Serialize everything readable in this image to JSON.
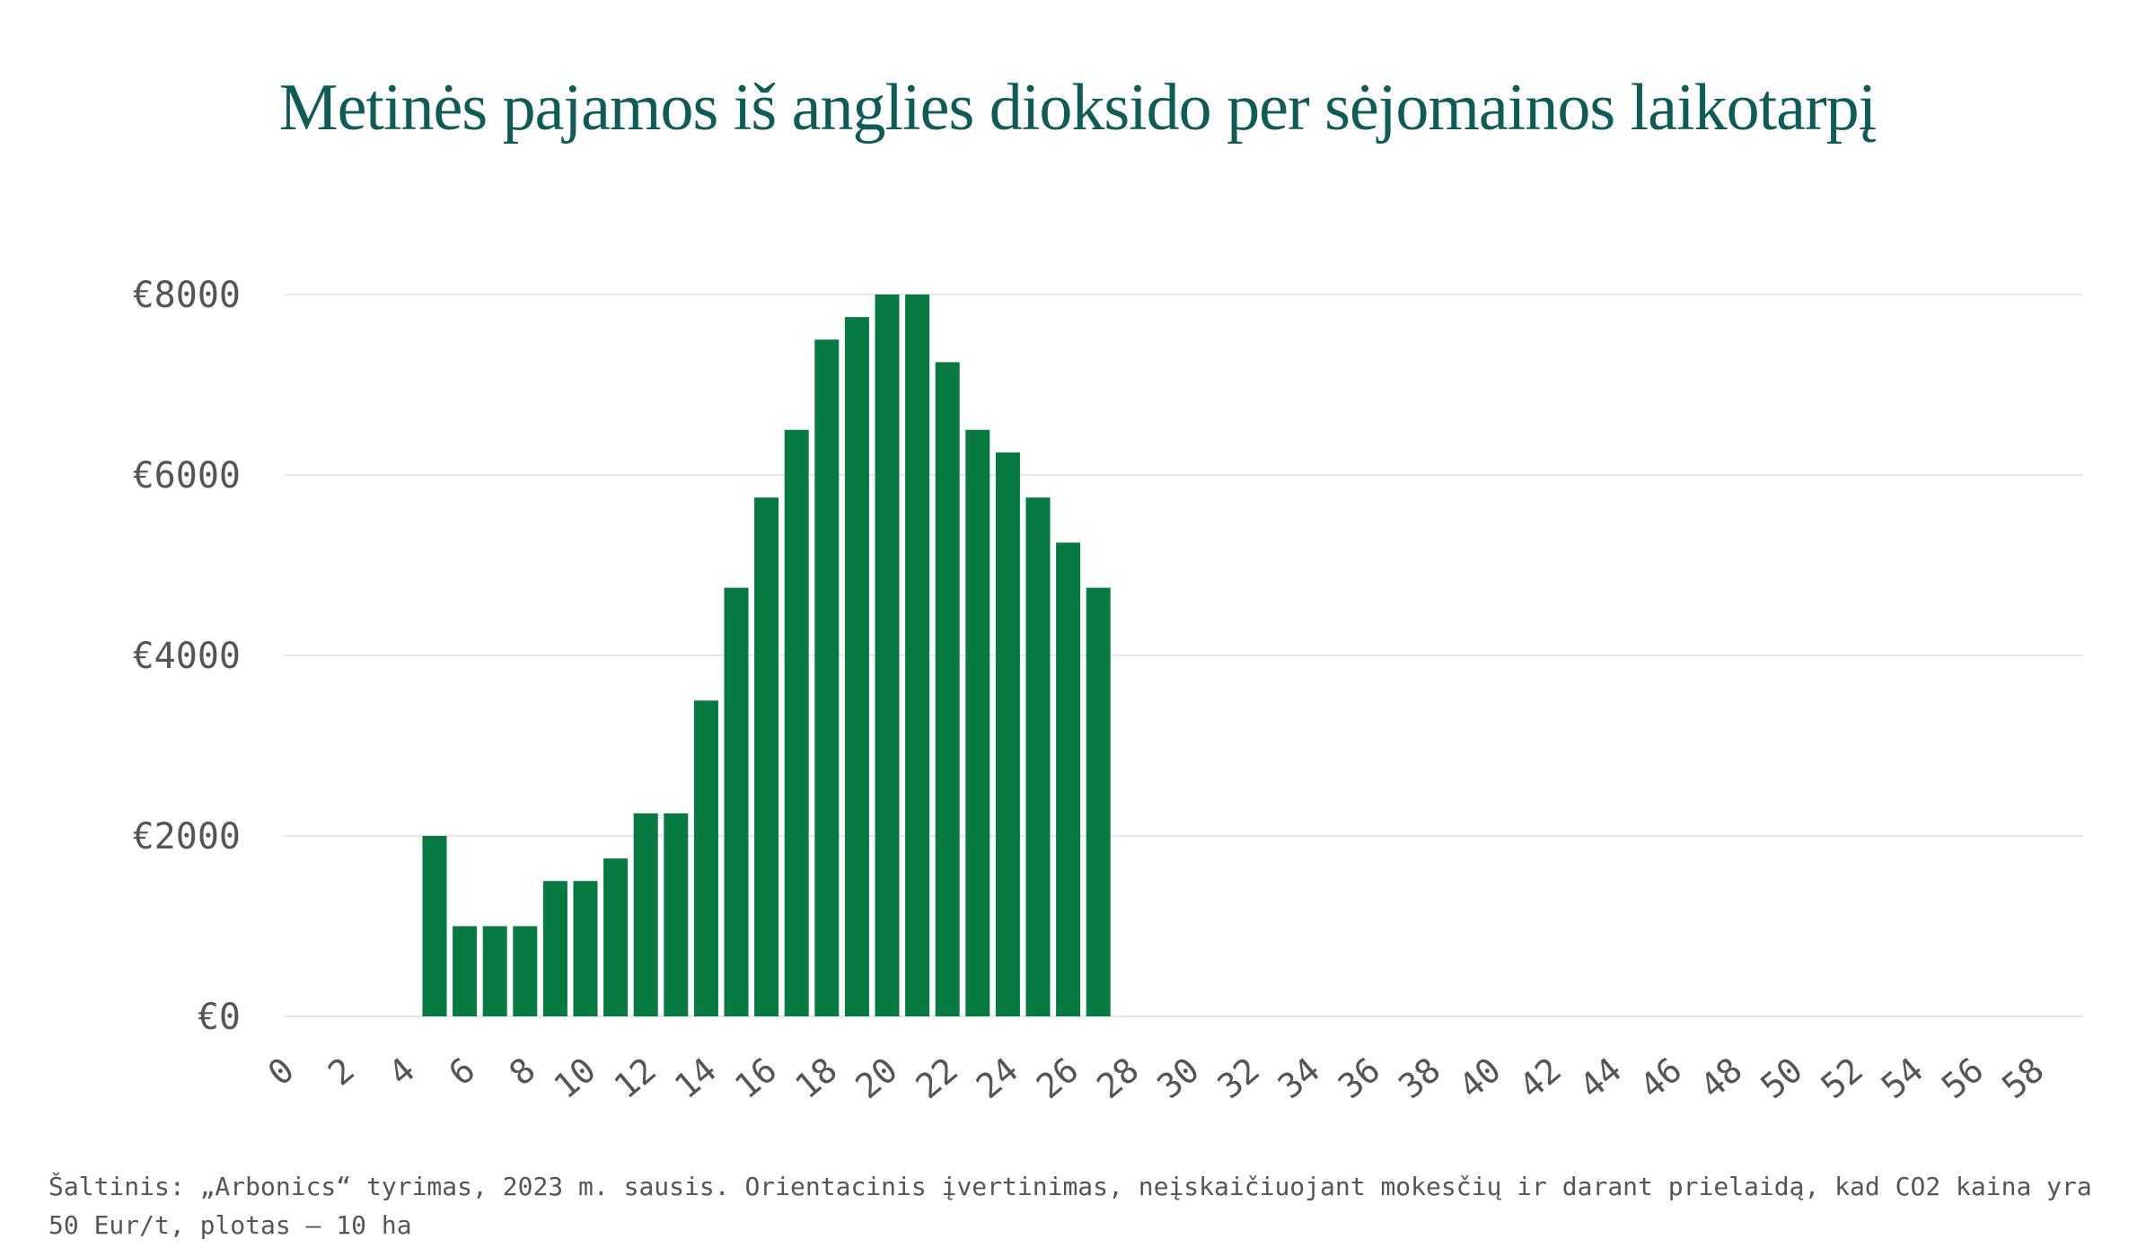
{
  "chart_data": {
    "type": "bar",
    "title": "Metinės pajamos iš anglies dioksido per sėjomainos laikotarpį",
    "xlabel": "",
    "ylabel": "",
    "x_tick_labels": [
      "0",
      "2",
      "4",
      "6",
      "8",
      "10",
      "12",
      "14",
      "16",
      "18",
      "20",
      "22",
      "24",
      "26",
      "28",
      "30",
      "32",
      "34",
      "36",
      "38",
      "40",
      "42",
      "44",
      "46",
      "48",
      "50",
      "52",
      "54",
      "56",
      "58"
    ],
    "y_tick_labels": [
      "€0",
      "€2000",
      "€4000",
      "€6000",
      "€8000"
    ],
    "y_ticks": [
      0,
      2000,
      4000,
      6000,
      8000
    ],
    "ylim": [
      0,
      8000
    ],
    "xlim": [
      0,
      59
    ],
    "grid": "horizontal",
    "bar_color": "#077a42",
    "categories": [
      5,
      6,
      7,
      8,
      9,
      10,
      11,
      12,
      13,
      14,
      15,
      16,
      17,
      18,
      19,
      20,
      21,
      22,
      23,
      24,
      25,
      26,
      27
    ],
    "values": [
      2000,
      1000,
      1000,
      1000,
      1500,
      1500,
      1750,
      2250,
      2250,
      3500,
      4750,
      5750,
      6500,
      7500,
      7750,
      8000,
      8000,
      7250,
      6500,
      6250,
      5750,
      5250,
      4750
    ]
  },
  "source": "Šaltinis: „Arbonics“ tyrimas, 2023 m. sausis. Orientacinis įvertinimas, neįskaičiuojant mokesčių ir darant prielaidą, kad CO2 kaina yra 50 Eur/t, plotas – 10 ha",
  "colors": {
    "title": "#0d5c57",
    "bar": "#077a42",
    "grid": "#e8e8e8",
    "tick": "#555555"
  }
}
